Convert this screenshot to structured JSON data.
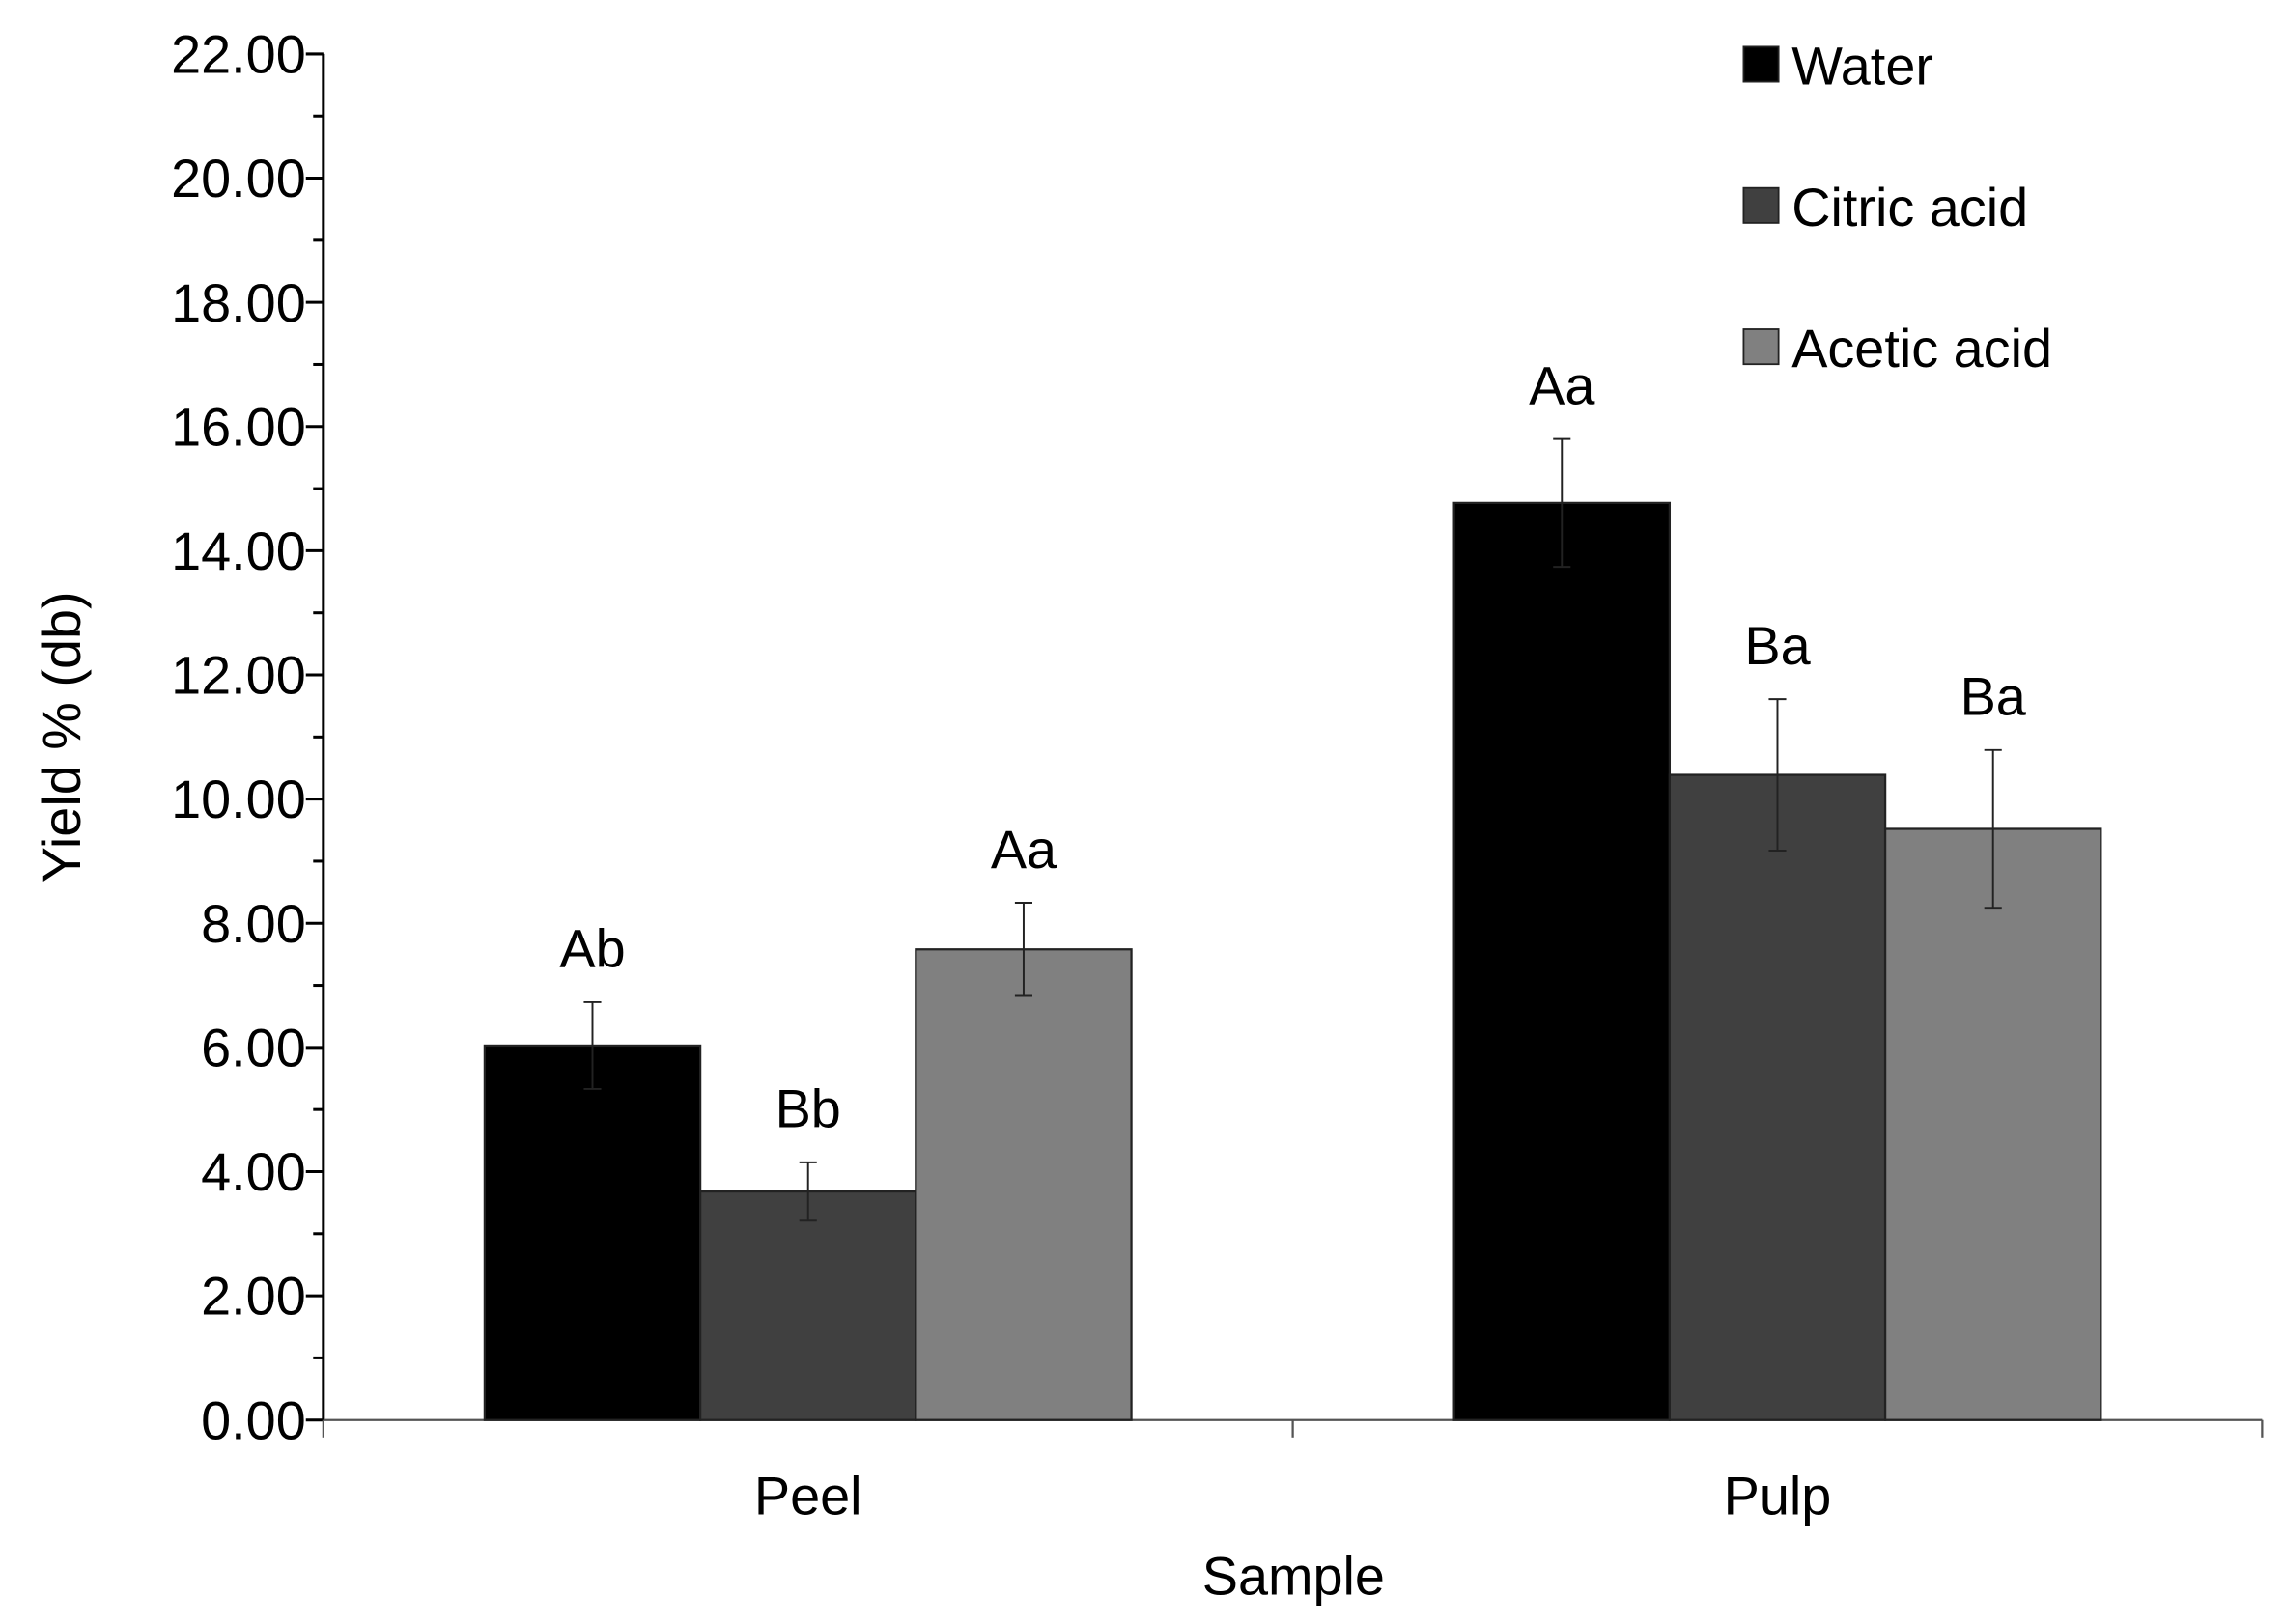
{
  "chart_data": {
    "type": "bar",
    "title": "",
    "xlabel": "Sample",
    "ylabel": "Yield % (db)",
    "ylim": [
      0,
      22
    ],
    "yticks": [
      "0.00",
      "2.00",
      "4.00",
      "6.00",
      "8.00",
      "10.00",
      "12.00",
      "14.00",
      "16.00",
      "18.00",
      "20.00",
      "22.00"
    ],
    "categories": [
      "Peel",
      "Pulp"
    ],
    "legend_position": "top-right",
    "grid": false,
    "series": [
      {
        "name": "Water",
        "color": "#000000",
        "values": [
          6.03,
          14.77
        ],
        "errors": [
          0.7,
          1.03
        ],
        "labels": [
          "Ab",
          "Aa"
        ]
      },
      {
        "name": "Citric acid",
        "color": "#404040",
        "values": [
          3.68,
          10.39
        ],
        "errors": [
          0.47,
          1.22
        ],
        "labels": [
          "Bb",
          "Ba"
        ]
      },
      {
        "name": "Acetic acid",
        "color": "#808080",
        "values": [
          7.58,
          9.52
        ],
        "errors": [
          0.75,
          1.27
        ],
        "labels": [
          "Aa",
          "Ba"
        ]
      }
    ]
  }
}
